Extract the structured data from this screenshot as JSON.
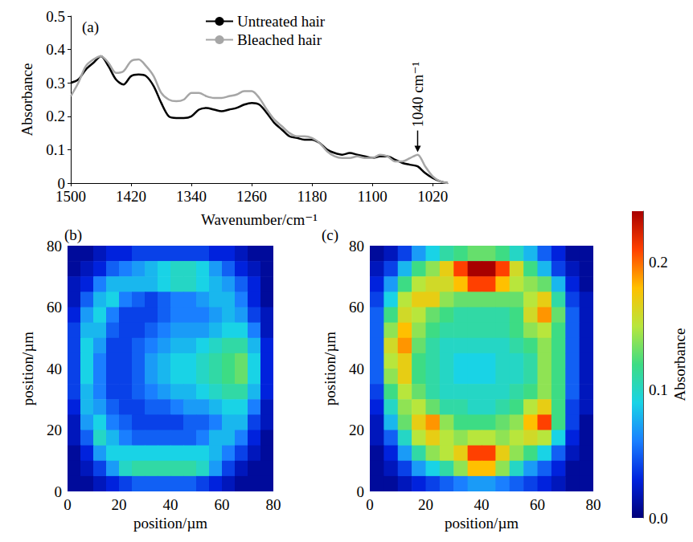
{
  "chart_data": [
    {
      "type": "line",
      "panel": "(a)",
      "xlabel": "Wavenumber/cm⁻¹",
      "ylabel": "Absorbance",
      "x": [
        1500,
        1490,
        1480,
        1470,
        1460,
        1450,
        1440,
        1430,
        1420,
        1410,
        1400,
        1390,
        1380,
        1370,
        1360,
        1350,
        1340,
        1330,
        1320,
        1310,
        1300,
        1290,
        1280,
        1270,
        1260,
        1250,
        1240,
        1230,
        1220,
        1210,
        1200,
        1190,
        1180,
        1170,
        1160,
        1150,
        1140,
        1130,
        1120,
        1110,
        1100,
        1090,
        1080,
        1070,
        1060,
        1050,
        1040,
        1030,
        1020,
        1010,
        1000
      ],
      "series": [
        {
          "name": "Untreated hair",
          "color": "#000000",
          "values": [
            0.3,
            0.31,
            0.34,
            0.36,
            0.38,
            0.35,
            0.31,
            0.295,
            0.32,
            0.325,
            0.32,
            0.29,
            0.24,
            0.2,
            0.195,
            0.195,
            0.2,
            0.22,
            0.225,
            0.22,
            0.215,
            0.22,
            0.225,
            0.235,
            0.24,
            0.235,
            0.21,
            0.18,
            0.16,
            0.14,
            0.135,
            0.13,
            0.13,
            0.12,
            0.1,
            0.09,
            0.085,
            0.09,
            0.085,
            0.08,
            0.075,
            0.08,
            0.08,
            0.07,
            0.06,
            0.055,
            0.05,
            0.03,
            0.015,
            0.005,
            0.0
          ]
        },
        {
          "name": "Bleached hair",
          "color": "#a6a6a6",
          "values": [
            0.26,
            0.3,
            0.35,
            0.37,
            0.38,
            0.36,
            0.33,
            0.335,
            0.365,
            0.37,
            0.35,
            0.32,
            0.27,
            0.25,
            0.245,
            0.25,
            0.27,
            0.27,
            0.26,
            0.255,
            0.255,
            0.26,
            0.265,
            0.275,
            0.275,
            0.255,
            0.22,
            0.19,
            0.17,
            0.15,
            0.14,
            0.14,
            0.135,
            0.12,
            0.095,
            0.08,
            0.075,
            0.075,
            0.08,
            0.075,
            0.075,
            0.085,
            0.08,
            0.065,
            0.065,
            0.075,
            0.085,
            0.05,
            0.02,
            0.005,
            0.0
          ]
        }
      ],
      "xlim": [
        1500,
        1000
      ],
      "xticks": [
        1500,
        1420,
        1340,
        1260,
        1180,
        1100,
        1020
      ],
      "ylim": [
        0,
        0.5
      ],
      "yticks": [
        0,
        0.1,
        0.2,
        0.3,
        0.4,
        0.5
      ],
      "grid": false,
      "legend": "top",
      "annotations": [
        {
          "text": "1040 cm⁻¹",
          "x": 1040,
          "y": 0.09
        }
      ]
    },
    {
      "type": "heatmap",
      "panel": "(b)",
      "xlabel": "position/µm",
      "ylabel": "position/µm",
      "x": [
        2.5,
        7.5,
        12.5,
        17.5,
        22.5,
        27.5,
        32.5,
        37.5,
        42.5,
        47.5,
        52.5,
        57.5,
        62.5,
        67.5,
        72.5,
        77.5
      ],
      "y": [
        77.5,
        72.5,
        67.5,
        62.5,
        57.5,
        52.5,
        47.5,
        42.5,
        37.5,
        32.5,
        27.5,
        22.5,
        17.5,
        12.5,
        7.5,
        2.5
      ],
      "cells": [
        [
          0.01,
          0.01,
          0.02,
          0.03,
          0.03,
          0.04,
          0.04,
          0.04,
          0.04,
          0.04,
          0.04,
          0.03,
          0.03,
          0.02,
          0.01,
          0.01
        ],
        [
          0.01,
          0.02,
          0.03,
          0.05,
          0.06,
          0.07,
          0.08,
          0.09,
          0.1,
          0.1,
          0.09,
          0.07,
          0.05,
          0.03,
          0.02,
          0.01
        ],
        [
          0.02,
          0.03,
          0.06,
          0.08,
          0.08,
          0.08,
          0.08,
          0.09,
          0.1,
          0.1,
          0.09,
          0.08,
          0.07,
          0.05,
          0.03,
          0.01
        ],
        [
          0.02,
          0.05,
          0.08,
          0.09,
          0.06,
          0.05,
          0.04,
          0.05,
          0.06,
          0.06,
          0.07,
          0.08,
          0.08,
          0.06,
          0.03,
          0.01
        ],
        [
          0.03,
          0.07,
          0.09,
          0.06,
          0.04,
          0.04,
          0.04,
          0.05,
          0.06,
          0.06,
          0.06,
          0.07,
          0.08,
          0.07,
          0.04,
          0.02
        ],
        [
          0.04,
          0.08,
          0.08,
          0.05,
          0.04,
          0.04,
          0.05,
          0.06,
          0.07,
          0.07,
          0.07,
          0.08,
          0.09,
          0.09,
          0.06,
          0.02
        ],
        [
          0.04,
          0.09,
          0.07,
          0.04,
          0.04,
          0.05,
          0.06,
          0.07,
          0.08,
          0.08,
          0.09,
          0.1,
          0.11,
          0.11,
          0.08,
          0.03
        ],
        [
          0.04,
          0.09,
          0.06,
          0.04,
          0.04,
          0.05,
          0.07,
          0.08,
          0.09,
          0.09,
          0.1,
          0.11,
          0.12,
          0.13,
          0.09,
          0.03
        ],
        [
          0.04,
          0.09,
          0.06,
          0.04,
          0.04,
          0.05,
          0.07,
          0.08,
          0.09,
          0.09,
          0.1,
          0.11,
          0.12,
          0.13,
          0.09,
          0.03
        ],
        [
          0.04,
          0.08,
          0.06,
          0.04,
          0.04,
          0.05,
          0.06,
          0.07,
          0.08,
          0.08,
          0.09,
          0.1,
          0.11,
          0.11,
          0.08,
          0.03
        ],
        [
          0.03,
          0.08,
          0.07,
          0.05,
          0.04,
          0.04,
          0.05,
          0.05,
          0.06,
          0.07,
          0.07,
          0.08,
          0.09,
          0.09,
          0.06,
          0.02
        ],
        [
          0.02,
          0.07,
          0.09,
          0.06,
          0.05,
          0.04,
          0.04,
          0.04,
          0.04,
          0.05,
          0.05,
          0.06,
          0.08,
          0.08,
          0.04,
          0.02
        ],
        [
          0.02,
          0.05,
          0.1,
          0.08,
          0.06,
          0.05,
          0.05,
          0.05,
          0.05,
          0.05,
          0.06,
          0.08,
          0.08,
          0.06,
          0.03,
          0.01
        ],
        [
          0.01,
          0.03,
          0.07,
          0.09,
          0.09,
          0.09,
          0.09,
          0.09,
          0.09,
          0.09,
          0.09,
          0.08,
          0.06,
          0.04,
          0.02,
          0.01
        ],
        [
          0.01,
          0.02,
          0.04,
          0.07,
          0.1,
          0.11,
          0.11,
          0.11,
          0.11,
          0.11,
          0.1,
          0.07,
          0.04,
          0.02,
          0.01,
          0.01
        ],
        [
          0.01,
          0.01,
          0.02,
          0.03,
          0.04,
          0.05,
          0.05,
          0.05,
          0.05,
          0.05,
          0.04,
          0.03,
          0.02,
          0.01,
          0.01,
          0.01
        ]
      ],
      "xlim": [
        0,
        80
      ],
      "xticks": [
        0,
        20,
        40,
        60,
        80
      ],
      "ylim": [
        0,
        80
      ],
      "yticks": [
        0,
        20,
        40,
        60,
        80
      ]
    },
    {
      "type": "heatmap",
      "panel": "(c)",
      "xlabel": "position/µm",
      "ylabel": "position/µm",
      "x": [
        2.5,
        7.5,
        12.5,
        17.5,
        22.5,
        27.5,
        32.5,
        37.5,
        42.5,
        47.5,
        52.5,
        57.5,
        62.5,
        67.5,
        72.5,
        77.5
      ],
      "y": [
        77.5,
        72.5,
        67.5,
        62.5,
        57.5,
        52.5,
        47.5,
        42.5,
        37.5,
        32.5,
        27.5,
        22.5,
        17.5,
        12.5,
        7.5,
        2.5
      ],
      "cells": [
        [
          0.01,
          0.02,
          0.04,
          0.07,
          0.09,
          0.11,
          0.12,
          0.13,
          0.13,
          0.12,
          0.1,
          0.08,
          0.05,
          0.03,
          0.01,
          0.01
        ],
        [
          0.02,
          0.04,
          0.08,
          0.12,
          0.14,
          0.17,
          0.21,
          0.24,
          0.24,
          0.21,
          0.16,
          0.12,
          0.08,
          0.04,
          0.02,
          0.01
        ],
        [
          0.03,
          0.07,
          0.12,
          0.15,
          0.16,
          0.16,
          0.18,
          0.21,
          0.21,
          0.18,
          0.15,
          0.14,
          0.13,
          0.08,
          0.03,
          0.01
        ],
        [
          0.04,
          0.09,
          0.15,
          0.17,
          0.17,
          0.14,
          0.13,
          0.13,
          0.13,
          0.13,
          0.13,
          0.15,
          0.17,
          0.11,
          0.04,
          0.02
        ],
        [
          0.05,
          0.12,
          0.16,
          0.15,
          0.13,
          0.12,
          0.11,
          0.11,
          0.11,
          0.11,
          0.12,
          0.16,
          0.19,
          0.13,
          0.05,
          0.02
        ],
        [
          0.05,
          0.14,
          0.18,
          0.14,
          0.12,
          0.11,
          0.11,
          0.11,
          0.11,
          0.11,
          0.12,
          0.14,
          0.15,
          0.12,
          0.05,
          0.02
        ],
        [
          0.05,
          0.16,
          0.19,
          0.13,
          0.11,
          0.1,
          0.1,
          0.1,
          0.1,
          0.1,
          0.11,
          0.12,
          0.14,
          0.12,
          0.05,
          0.02
        ],
        [
          0.05,
          0.15,
          0.17,
          0.12,
          0.11,
          0.1,
          0.09,
          0.09,
          0.09,
          0.1,
          0.1,
          0.11,
          0.14,
          0.12,
          0.05,
          0.02
        ],
        [
          0.05,
          0.14,
          0.17,
          0.12,
          0.11,
          0.1,
          0.09,
          0.09,
          0.09,
          0.1,
          0.1,
          0.11,
          0.14,
          0.12,
          0.05,
          0.02
        ],
        [
          0.04,
          0.12,
          0.15,
          0.13,
          0.11,
          0.1,
          0.1,
          0.1,
          0.1,
          0.1,
          0.11,
          0.12,
          0.14,
          0.12,
          0.05,
          0.02
        ],
        [
          0.03,
          0.1,
          0.14,
          0.15,
          0.13,
          0.11,
          0.11,
          0.1,
          0.1,
          0.11,
          0.12,
          0.15,
          0.17,
          0.12,
          0.04,
          0.02
        ],
        [
          0.02,
          0.08,
          0.13,
          0.17,
          0.19,
          0.14,
          0.12,
          0.12,
          0.12,
          0.13,
          0.14,
          0.18,
          0.21,
          0.12,
          0.04,
          0.01
        ],
        [
          0.02,
          0.05,
          0.1,
          0.15,
          0.17,
          0.15,
          0.14,
          0.15,
          0.15,
          0.14,
          0.15,
          0.16,
          0.15,
          0.09,
          0.03,
          0.01
        ],
        [
          0.01,
          0.03,
          0.07,
          0.11,
          0.14,
          0.15,
          0.17,
          0.21,
          0.21,
          0.17,
          0.14,
          0.12,
          0.09,
          0.05,
          0.02,
          0.01
        ],
        [
          0.01,
          0.02,
          0.04,
          0.07,
          0.09,
          0.11,
          0.14,
          0.18,
          0.18,
          0.14,
          0.1,
          0.07,
          0.05,
          0.03,
          0.01,
          0.01
        ],
        [
          0.01,
          0.01,
          0.02,
          0.03,
          0.04,
          0.05,
          0.06,
          0.07,
          0.07,
          0.06,
          0.05,
          0.04,
          0.03,
          0.02,
          0.01,
          0.01
        ]
      ],
      "xlim": [
        0,
        80
      ],
      "xticks": [
        0,
        20,
        40,
        60,
        80
      ],
      "ylim": [
        0,
        80
      ],
      "yticks": [
        0,
        20,
        40,
        60,
        80
      ],
      "colorbar": {
        "label": "Absorbance",
        "range": [
          0,
          0.24
        ],
        "ticks": [
          {
            "value": 0,
            "label": "0.0"
          },
          0.1,
          0.2
        ]
      }
    }
  ]
}
